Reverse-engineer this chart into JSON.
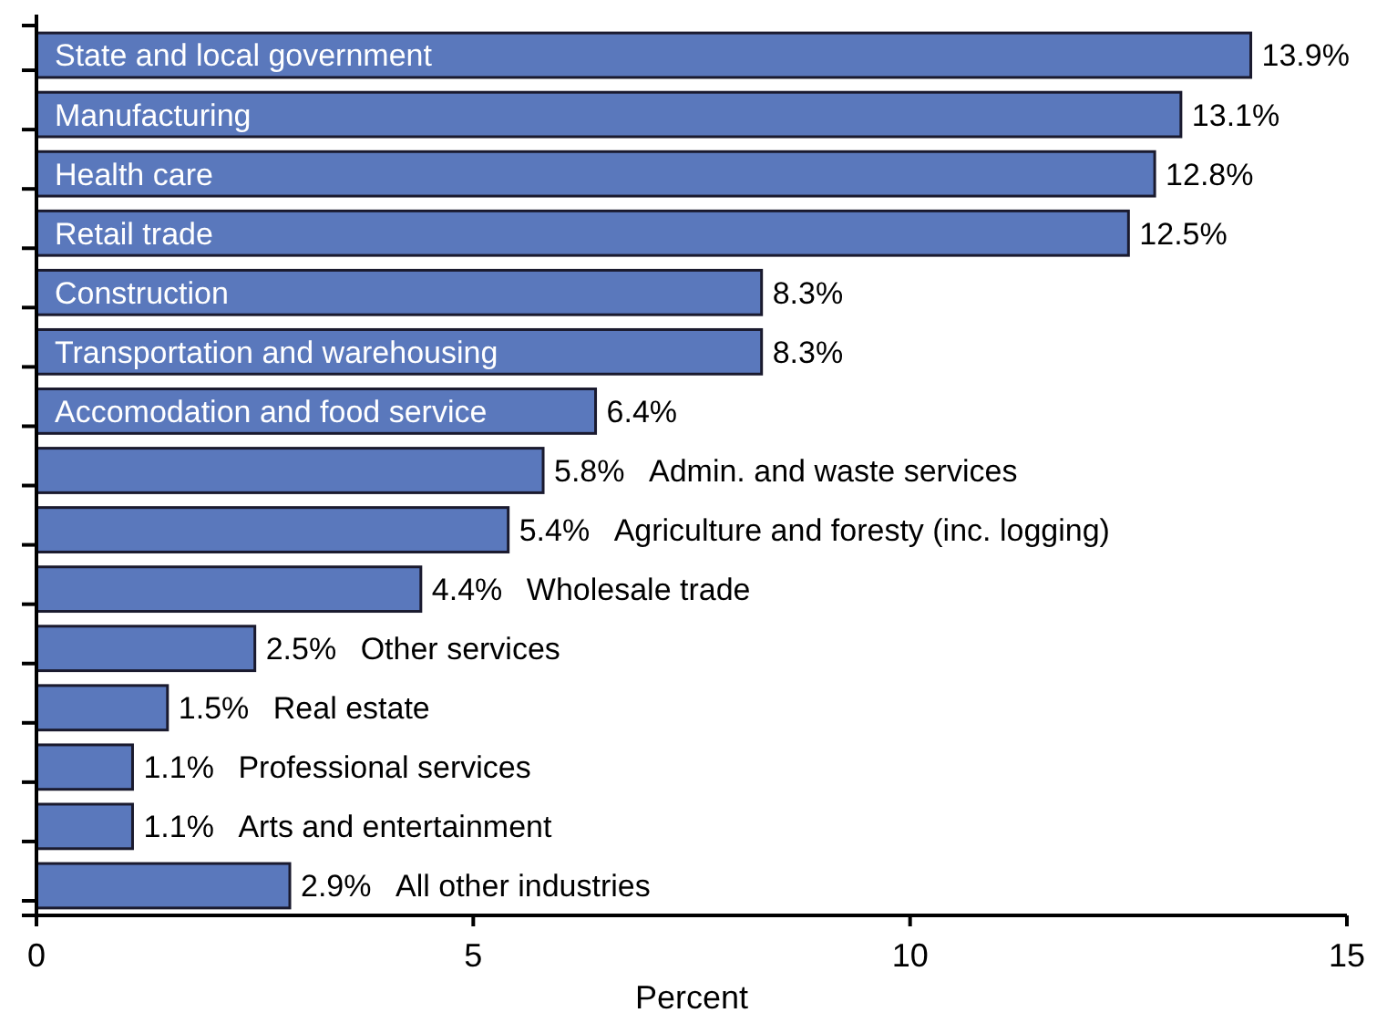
{
  "chart_data": {
    "type": "bar",
    "orientation": "horizontal",
    "xlabel": "Percent",
    "categories": [
      "State and local government",
      "Manufacturing",
      "Health care",
      "Retail trade",
      "Construction",
      "Transportation and warehousing",
      "Accomodation and food service",
      "Admin. and waste services",
      "Agriculture and foresty (inc. logging)",
      "Wholesale trade",
      "Other services",
      "Real estate",
      "Professional services",
      "Arts and entertainment",
      "All other industries"
    ],
    "values": [
      13.9,
      13.1,
      12.8,
      12.5,
      8.3,
      8.3,
      6.4,
      5.8,
      5.4,
      4.4,
      2.5,
      1.5,
      1.1,
      1.1,
      2.9
    ],
    "value_labels": [
      "13.9%",
      "13.1%",
      "12.8%",
      "12.5%",
      "8.3%",
      "8.3%",
      "6.4%",
      "5.8%",
      "5.4%",
      "4.4%",
      "2.5%",
      "1.5%",
      "1.1%",
      "1.1%",
      "2.9%"
    ],
    "color": "#5a78bc",
    "xlim": [
      0,
      15
    ],
    "xticks": [
      0,
      5,
      10,
      15
    ],
    "grid": false
  }
}
